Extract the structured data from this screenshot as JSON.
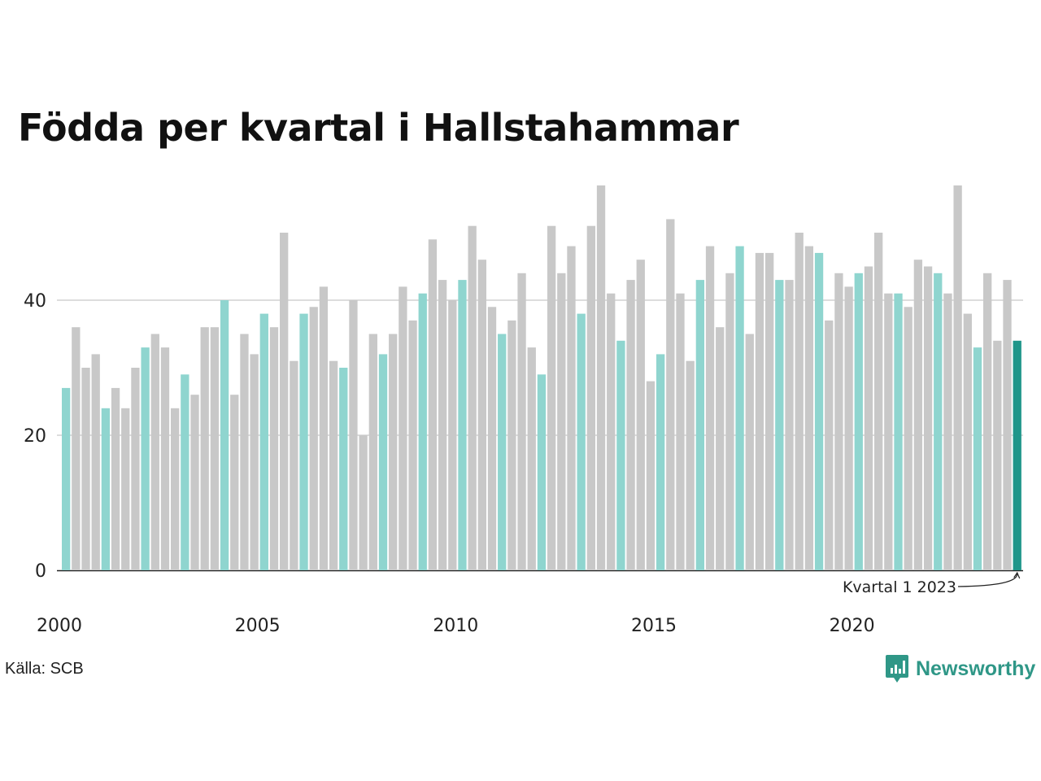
{
  "title": "Födda per kvartal i Hallstahammar",
  "source": "Källa: SCB",
  "brand": {
    "name": "Newsworthy",
    "icon": "newsworthy-logo-icon"
  },
  "colors": {
    "highlight_quarter": "#8fd5cf",
    "other_quarters": "#c8c8c8",
    "latest": "#1f968a",
    "gridline": "#dddddd"
  },
  "chart_data": {
    "type": "bar",
    "title": "Födda per kvartal i Hallstahammar",
    "xlabel": "",
    "ylabel": "",
    "ylim": [
      0,
      57
    ],
    "yticks": [
      0,
      20,
      40
    ],
    "xtick_labels": [
      "2000",
      "2005",
      "2010",
      "2015",
      "2020"
    ],
    "grid": true,
    "start": {
      "year": 2000,
      "quarter": 1
    },
    "highlight_quarter": 1,
    "annotation": {
      "text": "Kvartal 1 2023",
      "index": 96
    },
    "values": [
      27,
      36,
      30,
      32,
      24,
      27,
      24,
      30,
      33,
      35,
      33,
      24,
      29,
      26,
      36,
      36,
      40,
      26,
      35,
      32,
      38,
      36,
      50,
      31,
      38,
      39,
      42,
      31,
      30,
      40,
      20,
      35,
      32,
      35,
      42,
      37,
      41,
      49,
      43,
      40,
      43,
      51,
      46,
      39,
      35,
      37,
      44,
      33,
      29,
      51,
      44,
      48,
      38,
      51,
      57,
      41,
      34,
      43,
      46,
      28,
      32,
      52,
      41,
      31,
      43,
      48,
      36,
      44,
      48,
      35,
      47,
      47,
      43,
      43,
      50,
      48,
      47,
      37,
      44,
      42,
      44,
      45,
      50,
      41,
      41,
      39,
      46,
      45,
      44,
      41,
      57,
      38,
      33,
      44,
      34,
      43,
      34
    ]
  }
}
